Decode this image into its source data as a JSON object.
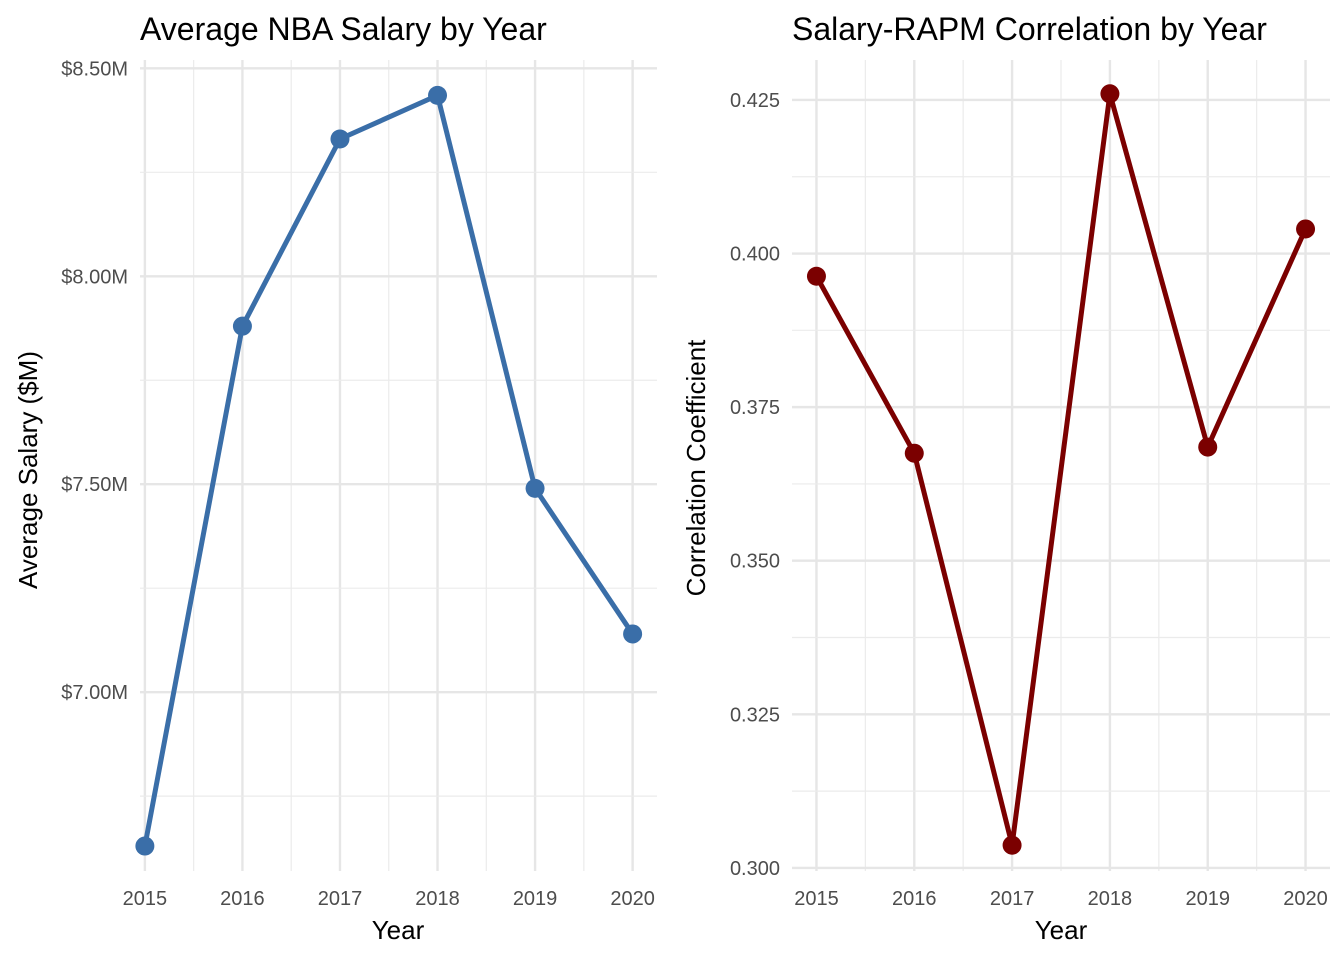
{
  "chart_data": [
    {
      "type": "line",
      "title": "Average NBA Salary by Year",
      "xlabel": "Year",
      "ylabel": "Average Salary ($M)",
      "x": [
        2015,
        2016,
        2017,
        2018,
        2019,
        2020
      ],
      "x_tick_labels": [
        "2015",
        "2016",
        "2017",
        "2018",
        "2019",
        "2020"
      ],
      "values": [
        6.63,
        7.88,
        8.33,
        8.435,
        7.49,
        7.14
      ],
      "y_ticks": [
        7.0,
        7.5,
        8.0,
        8.5
      ],
      "y_tick_labels": [
        "$7.00M",
        "$7.50M",
        "$8.00M",
        "$8.50M"
      ],
      "ylim": [
        6.57,
        8.52
      ],
      "xlim": [
        2014.95,
        2020.25
      ],
      "color": "#3a6ea8",
      "grid": true
    },
    {
      "type": "line",
      "title": "Salary-RAPM Correlation by Year",
      "xlabel": "Year",
      "ylabel": "Correlation Coefficient",
      "x": [
        2015,
        2016,
        2017,
        2018,
        2019,
        2020
      ],
      "x_tick_labels": [
        "2015",
        "2016",
        "2017",
        "2018",
        "2019",
        "2020"
      ],
      "values": [
        0.3963,
        0.3675,
        0.3037,
        0.426,
        0.3685,
        0.404
      ],
      "y_ticks": [
        0.3,
        0.325,
        0.35,
        0.375,
        0.4,
        0.425
      ],
      "y_tick_labels": [
        "0.300",
        "0.325",
        "0.350",
        "0.375",
        "0.400",
        "0.425"
      ],
      "ylim": [
        0.2995,
        0.4315
      ],
      "xlim": [
        2014.75,
        2020.25
      ],
      "color": "#7b0000",
      "grid": true
    }
  ]
}
